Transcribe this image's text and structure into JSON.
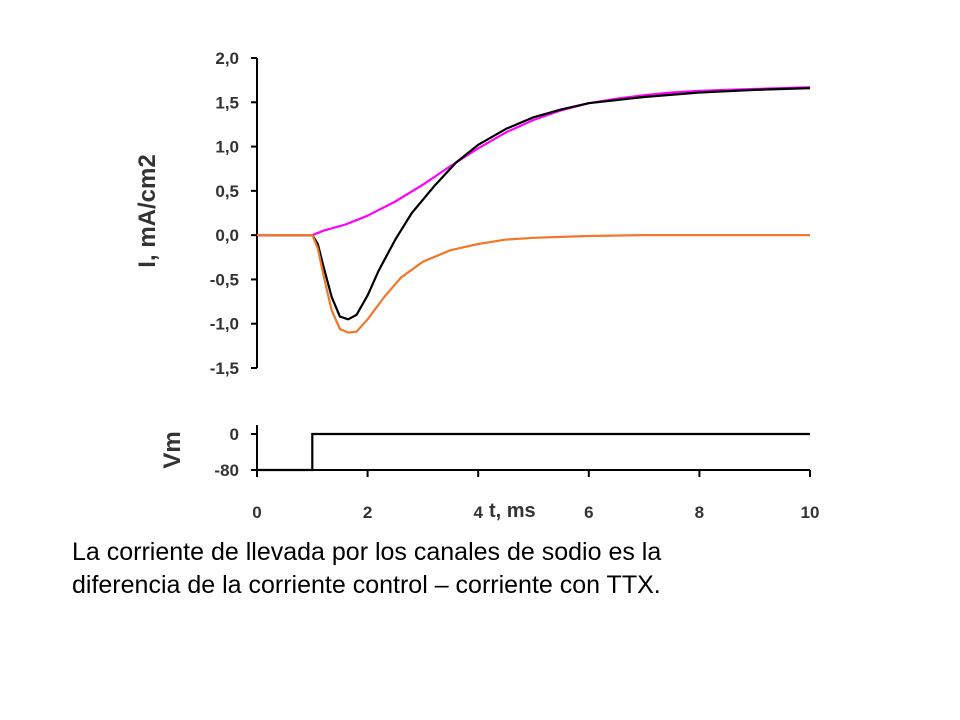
{
  "caption": {
    "line1": "La corriente de llevada por los canales de sodio es la",
    "line2": "diferencia de la corriente control – corriente con TTX."
  },
  "chart_data": [
    {
      "type": "line",
      "ylabel": "I, mA/cm2",
      "xlabel": "",
      "xlim": [
        0,
        10
      ],
      "ylim": [
        -1.5,
        2.0
      ],
      "yticks": [
        "2,0",
        "1,5",
        "1,0",
        "0,5",
        "0,0",
        "-0,5",
        "-1,0",
        "-1,5"
      ],
      "ytick_values": [
        2.0,
        1.5,
        1.0,
        0.5,
        0.0,
        -0.5,
        -1.0,
        -1.5
      ],
      "grid": false,
      "series": [
        {
          "color": "#ff00ff",
          "x": [
            1.0,
            1.2,
            1.6,
            2.0,
            2.5,
            3.0,
            3.5,
            4.0,
            4.5,
            5.0,
            5.5,
            6.0,
            6.5,
            7.0,
            7.5,
            8.0,
            8.5,
            9.0,
            9.5,
            10.0
          ],
          "y": [
            0.0,
            0.05,
            0.12,
            0.22,
            0.38,
            0.57,
            0.78,
            0.98,
            1.16,
            1.3,
            1.41,
            1.49,
            1.54,
            1.58,
            1.61,
            1.63,
            1.64,
            1.65,
            1.66,
            1.67
          ]
        },
        {
          "color": "#000000",
          "x": [
            1.0,
            1.1,
            1.2,
            1.35,
            1.5,
            1.65,
            1.8,
            2.0,
            2.2,
            2.5,
            2.8,
            3.2,
            3.6,
            4.0,
            4.5,
            5.0,
            5.5,
            6.0,
            7.0,
            8.0,
            9.0,
            10.0
          ],
          "y": [
            0.0,
            -0.1,
            -0.35,
            -0.7,
            -0.92,
            -0.95,
            -0.9,
            -0.68,
            -0.4,
            -0.05,
            0.25,
            0.55,
            0.82,
            1.02,
            1.2,
            1.33,
            1.42,
            1.49,
            1.56,
            1.61,
            1.64,
            1.66
          ]
        },
        {
          "color": "#f07828",
          "x": [
            1.0,
            1.1,
            1.2,
            1.35,
            1.5,
            1.65,
            1.8,
            2.0,
            2.3,
            2.6,
            3.0,
            3.5,
            4.0,
            4.5,
            5.0,
            5.5,
            6.0,
            7.0,
            8.0,
            9.0,
            10.0
          ],
          "y": [
            0.0,
            -0.15,
            -0.45,
            -0.85,
            -1.06,
            -1.1,
            -1.09,
            -0.95,
            -0.7,
            -0.48,
            -0.3,
            -0.17,
            -0.1,
            -0.05,
            -0.03,
            -0.02,
            -0.01,
            0.0,
            0.0,
            0.0,
            0.0
          ]
        }
      ]
    },
    {
      "type": "line",
      "ylabel": "Vm",
      "xlabel": "t, ms",
      "xlim": [
        0,
        10
      ],
      "ylim": [
        -80,
        0
      ],
      "yticks": [
        "0",
        "-80"
      ],
      "ytick_values": [
        0,
        -80
      ],
      "xticks": [
        "0",
        "2",
        "4",
        "6",
        "8",
        "10"
      ],
      "xtick_values": [
        0,
        2,
        4,
        6,
        8,
        10
      ],
      "grid": false,
      "series": [
        {
          "color": "#000000",
          "x": [
            0.0,
            1.0,
            1.0,
            10.0
          ],
          "y": [
            -80,
            -80,
            0,
            0
          ]
        }
      ]
    }
  ]
}
